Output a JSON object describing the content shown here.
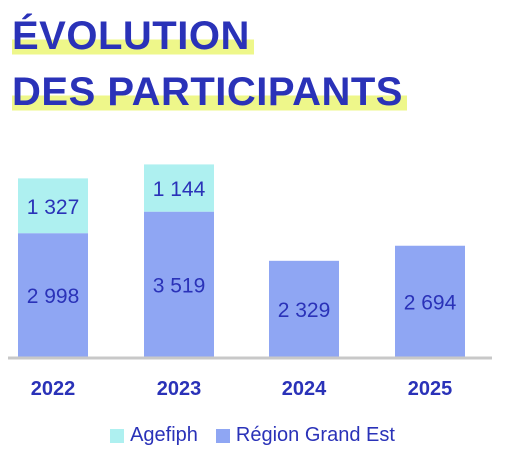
{
  "title": {
    "line1": "ÉVOLUTION",
    "line2": "DES PARTICIPANTS"
  },
  "colors": {
    "title": "#2a32b8",
    "highlight": "#eef78a",
    "agefiph": "#aef0f0",
    "region": "#8fa6f3",
    "label": "#2a32b8",
    "axis": "#c8c8c8"
  },
  "chart_data": {
    "type": "bar",
    "stacked": true,
    "categories": [
      "2022",
      "2023",
      "2024",
      "2025"
    ],
    "series": [
      {
        "name": "Région Grand Est",
        "values": [
          2998,
          3519,
          2329,
          2694
        ],
        "labels": [
          "2 998",
          "3 519",
          "2 329",
          "2 694"
        ]
      },
      {
        "name": "Agefiph",
        "values": [
          1327,
          1144,
          null,
          null
        ],
        "labels": [
          "1 327",
          "1 144",
          "",
          ""
        ]
      }
    ],
    "grid": false,
    "legend": "bottom"
  }
}
